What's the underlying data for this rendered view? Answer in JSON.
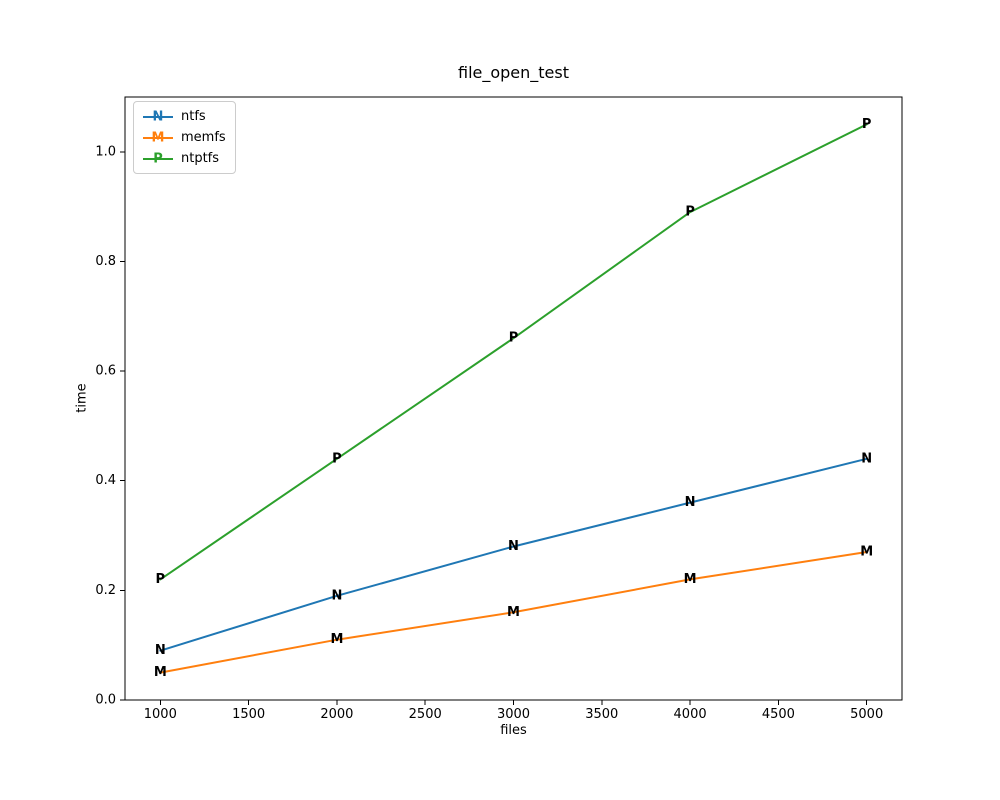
{
  "figure": {
    "background": "#ffffff",
    "spine_color": "#000000",
    "legend_border_color": "#cccccc"
  },
  "chart_data": {
    "type": "line",
    "title": "file_open_test",
    "xlabel": "files",
    "ylabel": "time",
    "x": [
      1000,
      2000,
      3000,
      4000,
      5000
    ],
    "series": [
      {
        "name": "ntfs",
        "marker": "N",
        "color": "#1f77b4",
        "values": [
          0.09,
          0.19,
          0.28,
          0.36,
          0.44
        ]
      },
      {
        "name": "memfs",
        "marker": "M",
        "color": "#ff7f0e",
        "values": [
          0.05,
          0.11,
          0.16,
          0.22,
          0.27
        ]
      },
      {
        "name": "ntptfs",
        "marker": "P",
        "color": "#2ca02c",
        "values": [
          0.22,
          0.44,
          0.66,
          0.89,
          1.05
        ]
      }
    ],
    "xlim": [
      800,
      5200
    ],
    "ylim": [
      0,
      1.1
    ],
    "x_ticks": [
      1000,
      1500,
      2000,
      2500,
      3000,
      3500,
      4000,
      4500,
      5000
    ],
    "x_tick_labels": [
      "1000",
      "1500",
      "2000",
      "2500",
      "3000",
      "3500",
      "4000",
      "4500",
      "5000"
    ],
    "y_ticks": [
      0.0,
      0.2,
      0.4,
      0.6,
      0.8,
      1.0
    ],
    "y_tick_labels": [
      "0.0",
      "0.2",
      "0.4",
      "0.6",
      "0.8",
      "1.0"
    ],
    "grid": false,
    "legend_position": "upper left"
  }
}
